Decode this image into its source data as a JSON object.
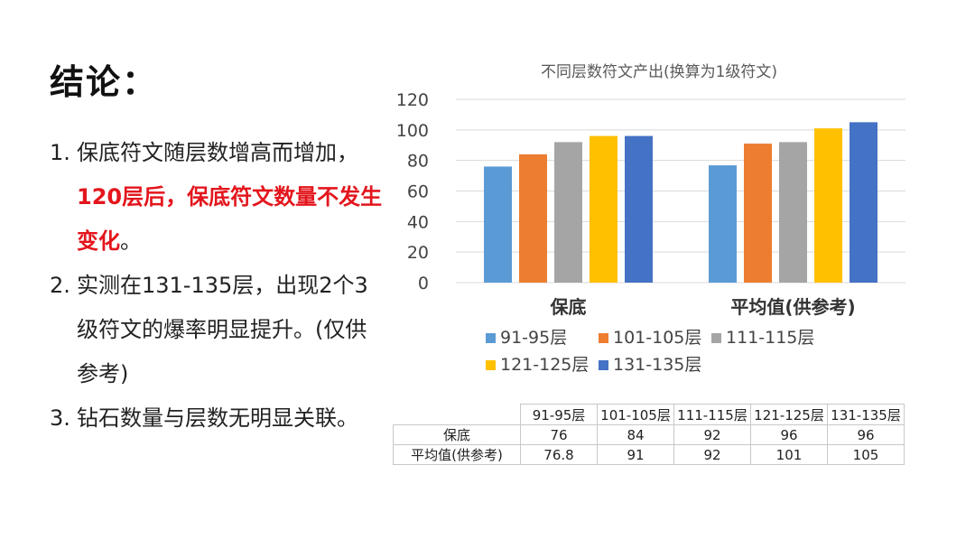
{
  "slide": {
    "title": "结论：",
    "points": [
      {
        "num": "1.",
        "text_plain": "保底符文随层数增高而增加，",
        "text_highlight": "120层后，保底符文数量不发生变化",
        "text_end": "。"
      },
      {
        "num": "2.",
        "text_plain": "实测在131-135层，出现2个3级符文的爆率明显提升。(仅供参考)"
      },
      {
        "num": "3.",
        "text_plain": "钻石数量与层数无明显关联。"
      }
    ]
  },
  "chart_data": {
    "type": "bar",
    "title": "不同层数符文产出(换算为1级符文)",
    "categories": [
      "保底",
      "平均值(供参考)"
    ],
    "series": [
      {
        "name": "91-95层",
        "values": [
          76,
          76.8
        ],
        "color": "#5b9bd5"
      },
      {
        "name": "101-105层",
        "values": [
          84,
          91
        ],
        "color": "#ed7d31"
      },
      {
        "name": "111-115层",
        "values": [
          92,
          92
        ],
        "color": "#a5a5a5"
      },
      {
        "name": "121-125层",
        "values": [
          96,
          101
        ],
        "color": "#ffc000"
      },
      {
        "name": "131-135层",
        "values": [
          96,
          105
        ],
        "color": "#4472c4"
      }
    ],
    "ylim": [
      0,
      120
    ],
    "yticks": [
      "0",
      "20",
      "40",
      "60",
      "80",
      "100",
      "120"
    ],
    "grid": true,
    "legend": "bottom"
  },
  "table": {
    "columns": [
      "91-95层",
      "101-105层",
      "111-115层",
      "121-125层",
      "131-135层"
    ],
    "rows": [
      {
        "label": "保底",
        "values": [
          "76",
          "84",
          "92",
          "96",
          "96"
        ]
      },
      {
        "label": "平均值(供参考)",
        "values": [
          "76.8",
          "91",
          "92",
          "101",
          "105"
        ]
      }
    ]
  }
}
